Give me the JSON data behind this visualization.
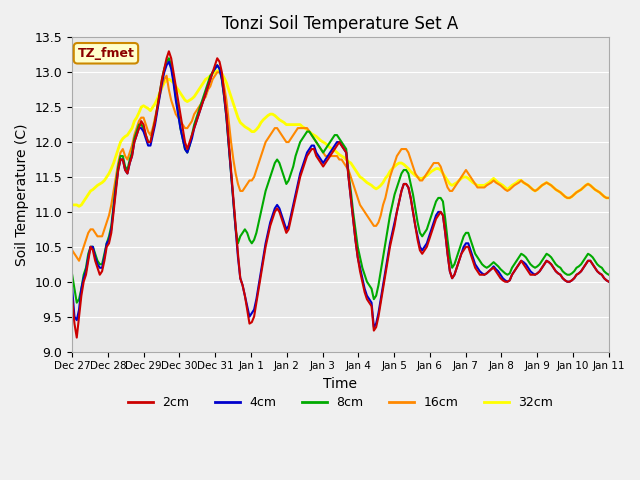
{
  "title": "Tonzi Soil Temperature Set A",
  "xlabel": "Time",
  "ylabel": "Soil Temperature (C)",
  "ylim": [
    9.0,
    13.5
  ],
  "label_text": "TZ_fmet",
  "bg_color": "#e8e8e8",
  "plot_bg": "#e8e8e8",
  "series": {
    "2cm": {
      "color": "#cc0000",
      "lw": 1.5
    },
    "4cm": {
      "color": "#0000cc",
      "lw": 1.5
    },
    "8cm": {
      "color": "#00aa00",
      "lw": 1.5
    },
    "16cm": {
      "color": "#ff8800",
      "lw": 1.5
    },
    "32cm": {
      "color": "#ffff00",
      "lw": 2.0
    }
  },
  "x_tick_labels": [
    "Dec 27",
    "Dec 28",
    "Dec 29",
    "Dec 30",
    "Dec 31",
    "Jan 1",
    "Jan 2",
    "Jan 3",
    "Jan 4",
    "Jan 5",
    "Jan 6",
    "Jan 7",
    "Jan 8",
    "Jan 9",
    "Jan 10",
    "Jan 11"
  ],
  "x_ticks": [
    0,
    48,
    96,
    144,
    192,
    240,
    288,
    336,
    384,
    432,
    480,
    528,
    576,
    624,
    672,
    720
  ],
  "data_2cm": [
    9.75,
    9.4,
    9.2,
    9.5,
    9.8,
    10.0,
    10.1,
    10.3,
    10.5,
    10.45,
    10.3,
    10.2,
    10.1,
    10.15,
    10.3,
    10.5,
    10.55,
    10.7,
    11.0,
    11.3,
    11.6,
    11.75,
    11.75,
    11.6,
    11.55,
    11.7,
    11.8,
    12.0,
    12.1,
    12.2,
    12.3,
    12.25,
    12.1,
    12.0,
    12.0,
    12.15,
    12.3,
    12.5,
    12.7,
    12.9,
    13.05,
    13.2,
    13.3,
    13.2,
    13.0,
    12.8,
    12.6,
    12.4,
    12.2,
    12.0,
    11.9,
    12.0,
    12.1,
    12.2,
    12.3,
    12.4,
    12.5,
    12.6,
    12.7,
    12.8,
    12.9,
    13.0,
    13.1,
    13.2,
    13.15,
    13.0,
    12.7,
    12.4,
    12.0,
    11.6,
    11.2,
    10.8,
    10.4,
    10.05,
    9.95,
    9.8,
    9.6,
    9.4,
    9.42,
    9.5,
    9.7,
    9.9,
    10.1,
    10.3,
    10.5,
    10.65,
    10.8,
    10.9,
    11.0,
    11.05,
    11.0,
    10.9,
    10.8,
    10.7,
    10.75,
    10.9,
    11.05,
    11.2,
    11.35,
    11.5,
    11.6,
    11.7,
    11.8,
    11.85,
    11.9,
    11.9,
    11.8,
    11.75,
    11.7,
    11.65,
    11.7,
    11.75,
    11.8,
    11.85,
    11.9,
    11.95,
    12.0,
    11.95,
    11.9,
    11.85,
    11.5,
    11.2,
    10.9,
    10.6,
    10.35,
    10.15,
    10.0,
    9.85,
    9.75,
    9.7,
    9.65,
    9.3,
    9.35,
    9.5,
    9.7,
    9.9,
    10.1,
    10.3,
    10.5,
    10.65,
    10.8,
    11.0,
    11.15,
    11.3,
    11.4,
    11.4,
    11.35,
    11.2,
    11.0,
    10.8,
    10.6,
    10.45,
    10.4,
    10.45,
    10.5,
    10.6,
    10.7,
    10.8,
    10.9,
    10.95,
    11.0,
    10.95,
    10.7,
    10.4,
    10.15,
    10.05,
    10.1,
    10.2,
    10.3,
    10.4,
    10.45,
    10.5,
    10.5,
    10.4,
    10.3,
    10.2,
    10.15,
    10.1,
    10.1,
    10.1,
    10.12,
    10.15,
    10.18,
    10.2,
    10.15,
    10.1,
    10.05,
    10.02,
    10.0,
    10.0,
    10.02,
    10.1,
    10.15,
    10.2,
    10.25,
    10.3,
    10.25,
    10.2,
    10.15,
    10.1,
    10.1,
    10.1,
    10.12,
    10.15,
    10.2,
    10.25,
    10.3,
    10.28,
    10.25,
    10.2,
    10.15,
    10.12,
    10.1,
    10.05,
    10.02,
    10.0,
    10.0,
    10.02,
    10.05,
    10.1,
    10.12,
    10.15,
    10.2,
    10.25,
    10.3,
    10.3,
    10.25,
    10.2,
    10.15,
    10.12,
    10.1,
    10.05,
    10.02,
    10.0
  ],
  "data_4cm": [
    9.9,
    9.5,
    9.45,
    9.6,
    9.9,
    10.05,
    10.15,
    10.35,
    10.5,
    10.5,
    10.35,
    10.25,
    10.2,
    10.2,
    10.35,
    10.55,
    10.6,
    10.75,
    11.05,
    11.35,
    11.6,
    11.75,
    11.75,
    11.6,
    11.55,
    11.7,
    11.8,
    12.0,
    12.1,
    12.2,
    12.2,
    12.15,
    12.05,
    11.95,
    11.95,
    12.1,
    12.25,
    12.45,
    12.65,
    12.85,
    13.0,
    13.1,
    13.15,
    13.05,
    12.85,
    12.6,
    12.4,
    12.2,
    12.05,
    11.9,
    11.85,
    11.95,
    12.05,
    12.2,
    12.3,
    12.4,
    12.5,
    12.6,
    12.7,
    12.8,
    12.9,
    13.0,
    13.05,
    13.1,
    13.05,
    12.9,
    12.65,
    12.35,
    11.95,
    11.55,
    11.15,
    10.75,
    10.35,
    10.05,
    9.95,
    9.8,
    9.65,
    9.5,
    9.55,
    9.6,
    9.75,
    9.95,
    10.15,
    10.35,
    10.55,
    10.7,
    10.85,
    10.95,
    11.05,
    11.1,
    11.05,
    10.95,
    10.85,
    10.75,
    10.8,
    10.95,
    11.1,
    11.25,
    11.4,
    11.55,
    11.65,
    11.75,
    11.85,
    11.9,
    11.95,
    11.95,
    11.85,
    11.8,
    11.75,
    11.7,
    11.75,
    11.8,
    11.85,
    11.9,
    11.95,
    12.0,
    12.0,
    11.95,
    11.9,
    11.85,
    11.5,
    11.2,
    10.9,
    10.6,
    10.35,
    10.2,
    10.05,
    9.9,
    9.8,
    9.75,
    9.7,
    9.35,
    9.4,
    9.55,
    9.75,
    9.95,
    10.15,
    10.35,
    10.55,
    10.7,
    10.85,
    11.0,
    11.15,
    11.3,
    11.4,
    11.4,
    11.35,
    11.2,
    11.0,
    10.8,
    10.65,
    10.5,
    10.45,
    10.5,
    10.55,
    10.65,
    10.75,
    10.85,
    10.95,
    11.0,
    11.0,
    10.95,
    10.7,
    10.4,
    10.15,
    10.05,
    10.1,
    10.2,
    10.3,
    10.4,
    10.5,
    10.55,
    10.55,
    10.45,
    10.35,
    10.25,
    10.2,
    10.15,
    10.12,
    10.1,
    10.12,
    10.15,
    10.18,
    10.22,
    10.18,
    10.15,
    10.1,
    10.05,
    10.02,
    10.0,
    10.02,
    10.1,
    10.15,
    10.2,
    10.25,
    10.3,
    10.28,
    10.25,
    10.2,
    10.15,
    10.12,
    10.1,
    10.12,
    10.15,
    10.2,
    10.25,
    10.3,
    10.28,
    10.25,
    10.2,
    10.15,
    10.12,
    10.1,
    10.05,
    10.02,
    10.0,
    10.0,
    10.02,
    10.05,
    10.1,
    10.12,
    10.15,
    10.2,
    10.25,
    10.3,
    10.3,
    10.25,
    10.2,
    10.15,
    10.12,
    10.1,
    10.05,
    10.02,
    10.0
  ],
  "data_8cm": [
    10.1,
    9.9,
    9.7,
    9.75,
    9.9,
    10.1,
    10.2,
    10.4,
    10.5,
    10.5,
    10.4,
    10.3,
    10.25,
    10.25,
    10.4,
    10.55,
    10.65,
    10.8,
    11.1,
    11.4,
    11.65,
    11.8,
    11.8,
    11.65,
    11.6,
    11.75,
    11.85,
    12.05,
    12.15,
    12.25,
    12.25,
    12.2,
    12.1,
    12.0,
    12.0,
    12.15,
    12.3,
    12.5,
    12.7,
    12.9,
    13.05,
    13.15,
    13.2,
    13.1,
    12.9,
    12.65,
    12.45,
    12.2,
    12.05,
    11.9,
    11.85,
    11.95,
    12.1,
    12.25,
    12.35,
    12.45,
    12.55,
    12.65,
    12.75,
    12.85,
    12.95,
    13.0,
    13.05,
    13.1,
    13.05,
    12.9,
    12.65,
    12.35,
    11.95,
    11.55,
    11.15,
    10.75,
    10.55,
    10.65,
    10.7,
    10.75,
    10.7,
    10.6,
    10.55,
    10.6,
    10.7,
    10.85,
    11.0,
    11.15,
    11.3,
    11.4,
    11.5,
    11.6,
    11.7,
    11.75,
    11.7,
    11.6,
    11.5,
    11.4,
    11.45,
    11.55,
    11.65,
    11.8,
    11.9,
    12.0,
    12.05,
    12.1,
    12.15,
    12.15,
    12.1,
    12.05,
    12.0,
    11.95,
    11.9,
    11.85,
    11.9,
    11.95,
    12.0,
    12.05,
    12.1,
    12.1,
    12.05,
    12.0,
    11.95,
    11.9,
    11.55,
    11.3,
    11.0,
    10.75,
    10.5,
    10.35,
    10.2,
    10.1,
    10.0,
    9.95,
    9.9,
    9.75,
    9.8,
    9.95,
    10.15,
    10.35,
    10.55,
    10.75,
    10.95,
    11.1,
    11.25,
    11.35,
    11.45,
    11.55,
    11.6,
    11.6,
    11.55,
    11.4,
    11.25,
    11.05,
    10.85,
    10.7,
    10.65,
    10.7,
    10.75,
    10.85,
    10.95,
    11.05,
    11.15,
    11.2,
    11.2,
    11.15,
    10.9,
    10.6,
    10.35,
    10.2,
    10.25,
    10.35,
    10.45,
    10.55,
    10.65,
    10.7,
    10.7,
    10.6,
    10.5,
    10.4,
    10.35,
    10.3,
    10.25,
    10.22,
    10.2,
    10.22,
    10.25,
    10.28,
    10.25,
    10.22,
    10.18,
    10.15,
    10.12,
    10.1,
    10.12,
    10.2,
    10.25,
    10.3,
    10.35,
    10.4,
    10.38,
    10.35,
    10.3,
    10.25,
    10.22,
    10.2,
    10.22,
    10.25,
    10.3,
    10.35,
    10.4,
    10.38,
    10.35,
    10.3,
    10.25,
    10.22,
    10.2,
    10.15,
    10.12,
    10.1,
    10.1,
    10.12,
    10.15,
    10.2,
    10.22,
    10.25,
    10.3,
    10.35,
    10.4,
    10.38,
    10.35,
    10.3,
    10.25,
    10.22,
    10.2,
    10.15,
    10.12,
    10.1
  ],
  "data_16cm": [
    10.45,
    10.4,
    10.35,
    10.3,
    10.4,
    10.5,
    10.6,
    10.7,
    10.75,
    10.75,
    10.7,
    10.65,
    10.65,
    10.65,
    10.75,
    10.85,
    10.95,
    11.1,
    11.3,
    11.5,
    11.7,
    11.85,
    11.9,
    11.8,
    11.75,
    11.85,
    11.95,
    12.1,
    12.2,
    12.3,
    12.35,
    12.35,
    12.25,
    12.15,
    12.1,
    12.2,
    12.35,
    12.5,
    12.65,
    12.8,
    12.9,
    12.95,
    12.75,
    12.6,
    12.5,
    12.4,
    12.35,
    12.3,
    12.25,
    12.2,
    12.2,
    12.25,
    12.3,
    12.4,
    12.45,
    12.5,
    12.55,
    12.6,
    12.65,
    12.75,
    12.8,
    12.9,
    12.95,
    13.0,
    13.0,
    12.95,
    12.8,
    12.6,
    12.3,
    12.0,
    11.75,
    11.55,
    11.4,
    11.3,
    11.3,
    11.35,
    11.4,
    11.45,
    11.45,
    11.5,
    11.6,
    11.7,
    11.8,
    11.9,
    12.0,
    12.05,
    12.1,
    12.15,
    12.2,
    12.2,
    12.15,
    12.1,
    12.05,
    12.0,
    12.0,
    12.05,
    12.1,
    12.15,
    12.2,
    12.2,
    12.2,
    12.2,
    12.2,
    12.15,
    12.1,
    12.05,
    12.0,
    11.95,
    11.9,
    11.85,
    11.8,
    11.8,
    11.8,
    11.8,
    11.8,
    11.8,
    11.75,
    11.75,
    11.7,
    11.65,
    11.6,
    11.5,
    11.4,
    11.3,
    11.2,
    11.1,
    11.05,
    11.0,
    10.95,
    10.9,
    10.85,
    10.8,
    10.8,
    10.85,
    10.95,
    11.1,
    11.2,
    11.35,
    11.5,
    11.6,
    11.7,
    11.8,
    11.85,
    11.9,
    11.9,
    11.9,
    11.85,
    11.75,
    11.65,
    11.55,
    11.5,
    11.45,
    11.45,
    11.5,
    11.55,
    11.6,
    11.65,
    11.7,
    11.7,
    11.7,
    11.65,
    11.55,
    11.45,
    11.35,
    11.3,
    11.3,
    11.35,
    11.4,
    11.45,
    11.5,
    11.55,
    11.6,
    11.55,
    11.5,
    11.45,
    11.4,
    11.35,
    11.35,
    11.35,
    11.35,
    11.38,
    11.4,
    11.42,
    11.45,
    11.42,
    11.4,
    11.38,
    11.35,
    11.32,
    11.3,
    11.32,
    11.35,
    11.38,
    11.4,
    11.42,
    11.45,
    11.42,
    11.4,
    11.38,
    11.35,
    11.32,
    11.3,
    11.32,
    11.35,
    11.38,
    11.4,
    11.42,
    11.4,
    11.38,
    11.35,
    11.32,
    11.3,
    11.28,
    11.25,
    11.22,
    11.2,
    11.2,
    11.22,
    11.25,
    11.28,
    11.3,
    11.32,
    11.35,
    11.38,
    11.4,
    11.38,
    11.35,
    11.32,
    11.3,
    11.28,
    11.25,
    11.22,
    11.2,
    11.2
  ],
  "data_32cm": [
    11.1,
    11.1,
    11.1,
    11.08,
    11.1,
    11.15,
    11.2,
    11.25,
    11.3,
    11.32,
    11.35,
    11.38,
    11.4,
    11.42,
    11.45,
    11.5,
    11.55,
    11.62,
    11.7,
    11.8,
    11.9,
    12.0,
    12.05,
    12.08,
    12.1,
    12.15,
    12.2,
    12.3,
    12.35,
    12.42,
    12.5,
    12.52,
    12.5,
    12.48,
    12.45,
    12.5,
    12.55,
    12.62,
    12.7,
    12.78,
    12.85,
    12.88,
    12.9,
    12.88,
    12.85,
    12.8,
    12.75,
    12.7,
    12.65,
    12.6,
    12.58,
    12.6,
    12.62,
    12.65,
    12.7,
    12.75,
    12.8,
    12.85,
    12.9,
    12.92,
    12.95,
    12.98,
    13.0,
    13.02,
    13.0,
    12.98,
    12.92,
    12.85,
    12.75,
    12.65,
    12.55,
    12.45,
    12.35,
    12.28,
    12.25,
    12.22,
    12.2,
    12.18,
    12.15,
    12.15,
    12.18,
    12.22,
    12.28,
    12.32,
    12.35,
    12.38,
    12.4,
    12.4,
    12.38,
    12.35,
    12.32,
    12.3,
    12.28,
    12.25,
    12.25,
    12.25,
    12.25,
    12.25,
    12.25,
    12.25,
    12.22,
    12.2,
    12.18,
    12.15,
    12.12,
    12.1,
    12.08,
    12.05,
    12.02,
    12.0,
    11.98,
    11.95,
    11.92,
    11.9,
    11.88,
    11.85,
    11.82,
    11.8,
    11.78,
    11.75,
    11.72,
    11.7,
    11.65,
    11.6,
    11.55,
    11.5,
    11.48,
    11.45,
    11.42,
    11.4,
    11.38,
    11.35,
    11.33,
    11.35,
    11.38,
    11.42,
    11.48,
    11.52,
    11.58,
    11.62,
    11.65,
    11.68,
    11.7,
    11.7,
    11.68,
    11.65,
    11.62,
    11.58,
    11.55,
    11.52,
    11.5,
    11.48,
    11.48,
    11.5,
    11.52,
    11.55,
    11.58,
    11.6,
    11.62,
    11.62,
    11.6,
    11.55,
    11.5,
    11.45,
    11.4,
    11.38,
    11.4,
    11.42,
    11.45,
    11.48,
    11.5,
    11.5,
    11.48,
    11.45,
    11.42,
    11.4,
    11.38,
    11.38,
    11.38,
    11.38,
    11.4,
    11.42,
    11.45,
    11.48,
    11.45,
    11.42,
    11.4,
    11.38,
    11.35,
    11.32,
    11.35,
    11.38,
    11.4,
    11.42,
    11.45,
    11.45,
    11.42,
    11.4,
    11.38,
    11.35,
    11.32,
    11.3,
    11.32,
    11.35,
    11.38,
    11.4,
    11.42,
    11.4,
    11.38,
    11.35,
    11.32,
    11.3,
    11.28,
    11.25,
    11.22,
    11.2,
    11.2,
    11.22,
    11.25,
    11.28,
    11.3,
    11.32,
    11.35,
    11.38,
    11.4,
    11.38,
    11.35,
    11.32,
    11.3,
    11.28,
    11.25,
    11.22,
    11.2,
    11.2
  ]
}
